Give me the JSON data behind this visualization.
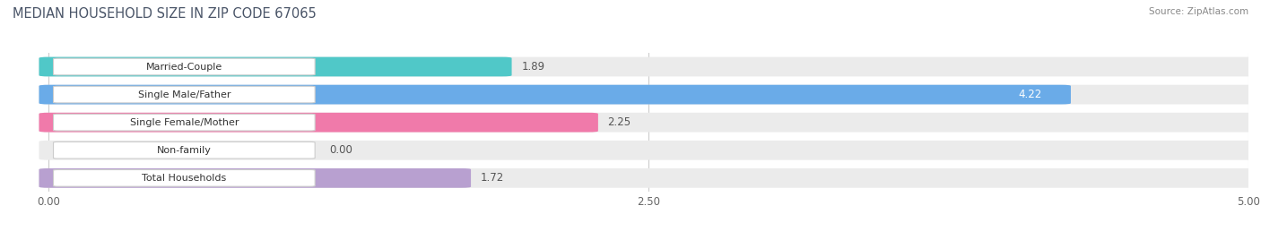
{
  "title": "MEDIAN HOUSEHOLD SIZE IN ZIP CODE 67065",
  "source": "Source: ZipAtlas.com",
  "categories": [
    "Married-Couple",
    "Single Male/Father",
    "Single Female/Mother",
    "Non-family",
    "Total Households"
  ],
  "values": [
    1.89,
    4.22,
    2.25,
    0.0,
    1.72
  ],
  "bar_colors": [
    "#50c8c8",
    "#6aabe8",
    "#f07aaa",
    "#f5c98a",
    "#b8a0d0"
  ],
  "background_colors": [
    "#ebebeb",
    "#ebebeb",
    "#ebebeb",
    "#ebebeb",
    "#ebebeb"
  ],
  "xlim": [
    0,
    5.0
  ],
  "xlim_display": [
    -0.15,
    5.0
  ],
  "xticks": [
    0.0,
    2.5,
    5.0
  ],
  "xtick_labels": [
    "0.00",
    "2.50",
    "5.00"
  ],
  "bar_height": 0.62,
  "bar_gap": 0.18,
  "value_fontsize": 8.5,
  "label_fontsize": 8,
  "title_fontsize": 10.5,
  "title_color": "#4a5568",
  "fig_bg": "#ffffff",
  "ax_bg": "#ffffff",
  "grid_color": "#cccccc",
  "value_inside_color": "#ffffff",
  "value_outside_color": "#555555"
}
